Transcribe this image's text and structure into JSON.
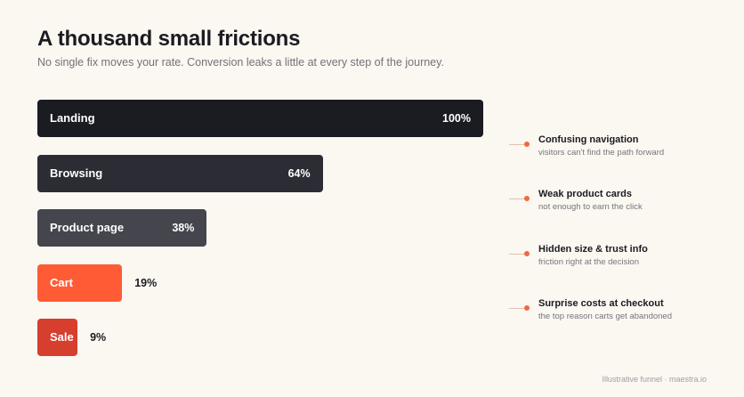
{
  "header": {
    "title": "A thousand small frictions",
    "subtitle": "No single fix moves your rate. Conversion leaks a little at every step of the journey."
  },
  "chart_data": {
    "type": "bar",
    "orientation": "horizontal",
    "categories": [
      "Landing",
      "Browsing",
      "Product page",
      "Cart",
      "Sale"
    ],
    "values": [
      100,
      64,
      38,
      19,
      9
    ],
    "value_labels": [
      "100%",
      "64%",
      "38%",
      "19%",
      "9%"
    ],
    "colors": [
      "#1b1b22",
      "#2c2c35",
      "#45454e",
      "#ff5c35",
      "#d63e2e"
    ],
    "xlim": [
      0,
      100
    ],
    "grid": false
  },
  "leaks": [
    {
      "title": "Confusing navigation",
      "subtitle": "visitors can't find the path forward"
    },
    {
      "title": "Weak product cards",
      "subtitle": "not enough to earn the click"
    },
    {
      "title": "Hidden size & trust info",
      "subtitle": "friction right at the decision"
    },
    {
      "title": "Surprise costs at checkout",
      "subtitle": "the top reason carts get abandoned"
    }
  ],
  "footer": "Illustrative funnel · maestra.io"
}
